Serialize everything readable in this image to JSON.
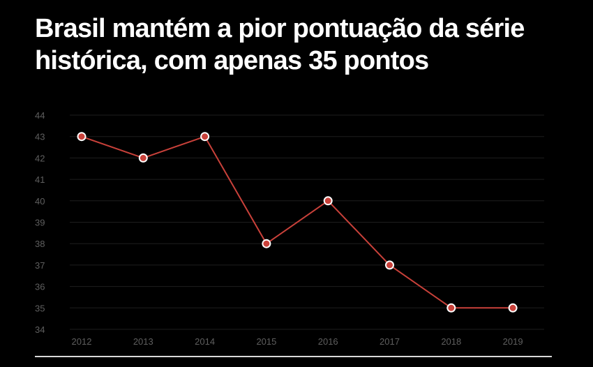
{
  "page": {
    "title": "Brasil mantém a pior pontuação da série histórica, com apenas 35 pontos"
  },
  "chart_data": {
    "type": "line",
    "title": "Brasil mantém a pior pontuação da série histórica, com apenas 35 pontos",
    "xlabel": "",
    "ylabel": "",
    "categories": [
      "2012",
      "2013",
      "2014",
      "2015",
      "2016",
      "2017",
      "2018",
      "2019"
    ],
    "series": [
      {
        "values": [
          43,
          42,
          43,
          38,
          40,
          37,
          35,
          35
        ]
      }
    ],
    "ylim": [
      34,
      44
    ],
    "yticks": [
      44,
      43,
      42,
      41,
      40,
      39,
      38,
      37,
      36,
      35,
      34
    ],
    "grid": true,
    "legend": "none",
    "colors": {
      "background": "#000000",
      "line": "#c9413a",
      "marker_fill": "#c9413a",
      "marker_stroke": "#ffffff",
      "grid": "#1e1e1e",
      "tick_text": "#5f5f5f",
      "title": "#ffffff",
      "rule": "#d9d9d9"
    }
  }
}
